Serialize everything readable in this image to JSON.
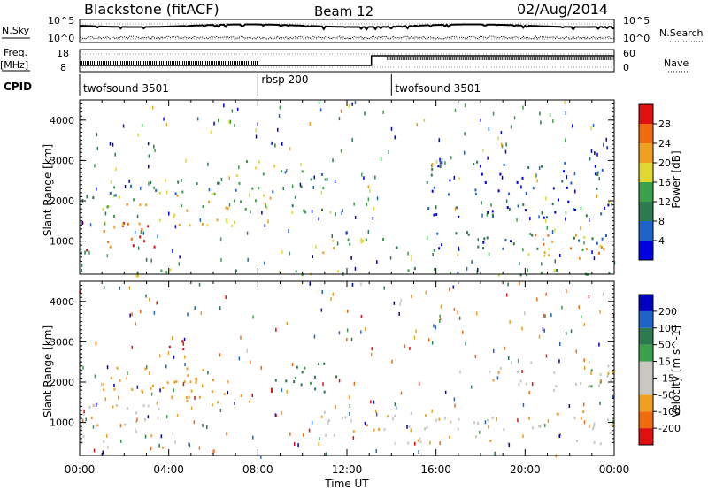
{
  "header": {
    "radar": "Blackstone (fitACF)",
    "beam": "Beam 12",
    "date": "02/Aug/2014"
  },
  "summary_panels": {
    "nsky_label": "N.Sky",
    "nsearch_label": "N.Search",
    "noise_tick_top": "10^5",
    "noise_tick_bottom": "10^0",
    "freq_label_top": "Freq.",
    "freq_label_bottom": "[MHz]",
    "freq_ticks": [
      "18",
      "8"
    ],
    "nave_label": "Nave",
    "nave_ticks": [
      "60",
      "0"
    ],
    "cpid_label": "CPID",
    "cpid_segments": [
      {
        "name": "twofsound 3501",
        "start_hour": 0,
        "end_hour": 8
      },
      {
        "name": "rbsp 200",
        "start_hour": 8,
        "end_hour": 14
      },
      {
        "name": "twofsound 3501",
        "start_hour": 14,
        "end_hour": 24
      }
    ]
  },
  "chart_data": [
    {
      "type": "heatmap",
      "title": "",
      "xlabel": "Time UT",
      "ylabel": "Slant Range [km]",
      "xlim": [
        0,
        24
      ],
      "ylim": [
        180,
        4500
      ],
      "xticks": [
        "00:00",
        "04:00",
        "08:00",
        "12:00",
        "16:00",
        "20:00",
        "00:00"
      ],
      "yticks": [
        "1000",
        "2000",
        "3000",
        "4000"
      ],
      "colorbar": {
        "label": "Power [dB]",
        "ticks": [
          "4",
          "8",
          "12",
          "16",
          "20",
          "24",
          "28"
        ],
        "range": [
          0,
          30
        ],
        "colors": [
          "#0000e0",
          "#1e64c8",
          "#2e7a50",
          "#3aa04a",
          "#e0d830",
          "#f0a020",
          "#f06a10",
          "#e01010"
        ]
      },
      "bands": [
        {
          "t0": 0.0,
          "t1": 3.6,
          "r0": 700,
          "r1": 1500,
          "level": 0.85
        },
        {
          "t0": 1.0,
          "t1": 7.6,
          "r0": 1400,
          "r1": 2300,
          "level": 0.6
        },
        {
          "t0": 0.0,
          "t1": 7.8,
          "r0": 2100,
          "r1": 2500,
          "level": 0.35
        },
        {
          "t0": 6.5,
          "t1": 8.8,
          "r0": 1800,
          "r1": 3100,
          "level": 0.55
        },
        {
          "t0": 8.5,
          "t1": 11.0,
          "r0": 1700,
          "r1": 2800,
          "level": 0.3
        },
        {
          "t0": 10.8,
          "t1": 13.6,
          "r0": 600,
          "r1": 1300,
          "level": 0.55
        },
        {
          "t0": 13.5,
          "t1": 24.0,
          "r0": 800,
          "r1": 1300,
          "level": 0.25
        },
        {
          "t0": 19.0,
          "t1": 24.0,
          "r0": 550,
          "r1": 1200,
          "level": 0.7
        },
        {
          "t0": 15.5,
          "t1": 24.0,
          "r0": 1600,
          "r1": 3000,
          "level": 0.15
        },
        {
          "t0": 0.0,
          "t1": 24.0,
          "r0": 180,
          "r1": 360,
          "level": 0.45
        }
      ]
    },
    {
      "type": "heatmap",
      "title": "",
      "xlabel": "Time UT",
      "ylabel": "Slant Range [km]",
      "xlim": [
        0,
        24
      ],
      "ylim": [
        180,
        4500
      ],
      "xticks": [
        "00:00",
        "04:00",
        "08:00",
        "12:00",
        "16:00",
        "20:00",
        "00:00"
      ],
      "yticks": [
        "1000",
        "2000",
        "3000",
        "4000"
      ],
      "colorbar": {
        "label": "Velocity [m s^-1]",
        "ticks": [
          "200",
          "100",
          "50",
          "15",
          "-15",
          "-50",
          "-100",
          "-200"
        ],
        "range": [
          -250,
          250
        ],
        "colors": [
          "#e01010",
          "#f06a10",
          "#f0a020",
          "#c8c8c0",
          "#c8c8c0",
          "#3aa04a",
          "#2e7a50",
          "#1e64c8",
          "#0000c0"
        ]
      },
      "bands": [
        {
          "t0": 0.0,
          "t1": 3.8,
          "r0": 400,
          "r1": 1500,
          "velocity": -5
        },
        {
          "t0": 1.0,
          "t1": 7.6,
          "r0": 1400,
          "r1": 2400,
          "velocity": -40
        },
        {
          "t0": 4.0,
          "t1": 5.2,
          "r0": 2700,
          "r1": 3100,
          "velocity": -220
        },
        {
          "t0": 8.0,
          "t1": 8.6,
          "r0": 1700,
          "r1": 2300,
          "velocity": -220
        },
        {
          "t0": 8.5,
          "t1": 11.5,
          "r0": 1700,
          "r1": 2600,
          "velocity": 60
        },
        {
          "t0": 10.8,
          "t1": 13.6,
          "r0": 600,
          "r1": 1300,
          "velocity": -5
        },
        {
          "t0": 13.5,
          "t1": 24.0,
          "r0": 500,
          "r1": 1300,
          "velocity": -5
        },
        {
          "t0": 18.0,
          "t1": 24.0,
          "r0": 1800,
          "r1": 2600,
          "velocity": 0
        }
      ]
    }
  ]
}
